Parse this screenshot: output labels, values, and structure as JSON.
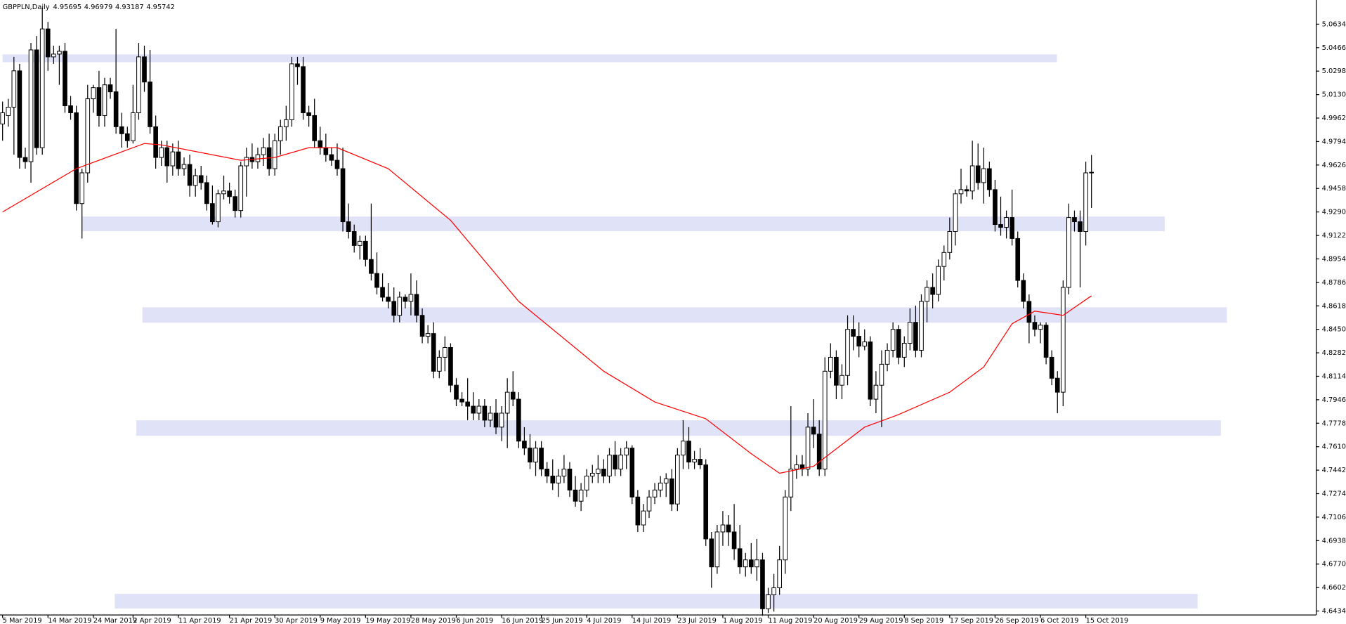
{
  "chart_data": {
    "type": "candlestick",
    "title": "GBPPLN,Daily",
    "title_values": [
      4.95695,
      4.96979,
      4.93187,
      4.95742
    ],
    "categories": [
      "5 Mar 2019",
      null,
      null,
      null,
      null,
      null,
      null,
      null,
      "14 Mar 2019",
      null,
      null,
      null,
      null,
      null,
      null,
      null,
      "24 Mar 2019",
      null,
      null,
      null,
      null,
      null,
      null,
      "2 Apr 2019",
      null,
      null,
      null,
      null,
      null,
      null,
      null,
      "11 Apr 2019",
      null,
      null,
      null,
      null,
      null,
      null,
      null,
      null,
      "21 Apr 2019",
      null,
      null,
      null,
      null,
      null,
      null,
      null,
      "30 Apr 2019",
      null,
      null,
      null,
      null,
      null,
      null,
      null,
      "9 May 2019",
      null,
      null,
      null,
      null,
      null,
      null,
      null,
      "19 May 2019",
      null,
      null,
      null,
      null,
      null,
      null,
      null,
      "28 May 2019",
      null,
      null,
      null,
      null,
      null,
      null,
      null,
      "6 Jun 2019",
      null,
      null,
      null,
      null,
      null,
      null,
      null,
      "16 Jun 2019",
      null,
      null,
      null,
      null,
      null,
      null,
      "25 Jun 2019",
      null,
      null,
      null,
      null,
      null,
      null,
      null,
      "4 Jul 2019",
      null,
      null,
      null,
      null,
      null,
      null,
      null,
      "14 Jul 2019",
      null,
      null,
      null,
      null,
      null,
      null,
      null,
      "23 Jul 2019",
      null,
      null,
      null,
      null,
      null,
      null,
      null,
      "1 Aug 2019",
      null,
      null,
      null,
      null,
      null,
      null,
      null,
      "11 Aug 2019",
      null,
      null,
      null,
      null,
      null,
      null,
      null,
      "20 Aug 2019",
      null,
      null,
      null,
      null,
      null,
      null,
      null,
      "29 Aug 2019",
      null,
      null,
      null,
      null,
      null,
      null,
      null,
      "8 Sep 2019",
      null,
      null,
      null,
      null,
      null,
      null,
      null,
      "17 Sep 2019",
      null,
      null,
      null,
      null,
      null,
      null,
      null,
      "26 Sep 2019",
      null,
      null,
      null,
      null,
      null,
      null,
      null,
      "6 Oct 2019",
      null,
      null,
      null,
      null,
      null,
      null,
      null,
      "15 Oct 2019",
      null
    ],
    "open": [
      4.992,
      4.998,
      5.004,
      5.03,
      4.968,
      4.965,
      5.045,
      4.975,
      5.06,
      5.04,
      5.042,
      5.044,
      5.005,
      5.0,
      4.935,
      4.957,
      5.01,
      5.018,
      4.998,
      5.02,
      5.015,
      4.99,
      4.985,
      4.98,
      5.0,
      5.04,
      5.022,
      4.99,
      4.968,
      4.975,
      4.962,
      4.972,
      4.96,
      4.963,
      4.948,
      4.955,
      4.95,
      4.935,
      4.922,
      4.942,
      4.944,
      4.94,
      4.93,
      4.962,
      4.968,
      4.965,
      4.97,
      4.975,
      4.96,
      4.98,
      4.99,
      4.995,
      5.035,
      5.033,
      5.0,
      4.998,
      4.98,
      4.975,
      4.97,
      4.966,
      4.96,
      4.922,
      4.915,
      4.905,
      4.908,
      4.895,
      4.885,
      4.875,
      4.868,
      4.865,
      4.855,
      4.868,
      4.865,
      4.87,
      4.855,
      4.84,
      4.842,
      4.815,
      4.825,
      4.832,
      4.805,
      4.795,
      4.793,
      4.79,
      4.785,
      4.79,
      4.78,
      4.785,
      4.775,
      4.785,
      4.8,
      4.795,
      4.765,
      4.76,
      4.75,
      4.76,
      4.745,
      4.74,
      4.735,
      4.74,
      4.745,
      4.73,
      4.722,
      4.73,
      4.74,
      4.742,
      4.745,
      4.74,
      4.755,
      4.745,
      4.755,
      4.76,
      4.725,
      4.705,
      4.715,
      4.725,
      4.73,
      4.735,
      4.738,
      4.72,
      4.755,
      4.765,
      4.75,
      4.752,
      4.748,
      4.695,
      4.675,
      4.7,
      4.705,
      4.7,
      4.688,
      4.675,
      4.68,
      4.675,
      4.68,
      4.645,
      4.655,
      4.66,
      4.68,
      4.725,
      4.745,
      4.748,
      4.745,
      4.775,
      4.77,
      4.745,
      4.815,
      4.825,
      4.805,
      4.812,
      4.845,
      4.84,
      4.833,
      4.836,
      4.795,
      4.805,
      4.82,
      4.83,
      4.845,
      4.825,
      4.835,
      4.85,
      4.83,
      4.865,
      4.875,
      4.87,
      4.89,
      4.9,
      4.915,
      4.942,
      4.945,
      4.944,
      4.962,
      4.95,
      4.96,
      4.945,
      4.92,
      4.918,
      4.925,
      4.91,
      4.88,
      4.865,
      4.85,
      4.845,
      4.848,
      4.825,
      4.81,
      4.8,
      4.875,
      4.925,
      4.922,
      4.915,
      4.95695
    ],
    "high": [
      5.008,
      5.01,
      5.04,
      5.035,
      4.975,
      5.05,
      5.055,
      5.075,
      5.065,
      5.048,
      5.048,
      5.05,
      5.012,
      5.005,
      4.96,
      5.02,
      5.02,
      5.03,
      5.025,
      5.025,
      5.06,
      5.0,
      4.99,
      5.02,
      5.05,
      5.048,
      5.045,
      4.998,
      4.98,
      4.98,
      4.978,
      4.98,
      4.968,
      4.97,
      4.96,
      4.962,
      4.955,
      4.948,
      4.945,
      4.955,
      4.95,
      4.945,
      4.965,
      4.975,
      4.978,
      4.975,
      4.982,
      4.985,
      4.985,
      4.995,
      5.005,
      5.04,
      5.04,
      5.04,
      5.005,
      5.01,
      4.99,
      4.985,
      4.975,
      4.978,
      4.975,
      4.935,
      4.92,
      4.912,
      4.912,
      4.935,
      4.9,
      4.885,
      4.878,
      4.875,
      4.872,
      4.87,
      4.885,
      4.88,
      4.86,
      4.848,
      4.85,
      4.83,
      4.84,
      4.835,
      4.81,
      4.8,
      4.81,
      4.8,
      4.795,
      4.795,
      4.79,
      4.795,
      4.79,
      4.81,
      4.815,
      4.8,
      4.775,
      4.77,
      4.765,
      4.765,
      4.75,
      4.752,
      4.745,
      4.755,
      4.75,
      4.74,
      4.735,
      4.745,
      4.748,
      4.755,
      4.752,
      4.76,
      4.765,
      4.76,
      4.765,
      4.762,
      4.73,
      4.72,
      4.73,
      4.735,
      4.74,
      4.742,
      4.745,
      4.76,
      4.78,
      4.775,
      4.758,
      4.76,
      4.752,
      4.7,
      4.705,
      4.715,
      4.712,
      4.72,
      4.705,
      4.685,
      4.692,
      4.695,
      4.685,
      4.66,
      4.67,
      4.69,
      4.73,
      4.79,
      4.755,
      4.755,
      4.785,
      4.795,
      4.78,
      4.825,
      4.835,
      4.83,
      4.82,
      4.855,
      4.855,
      4.85,
      4.845,
      4.84,
      4.815,
      4.83,
      4.835,
      4.85,
      4.848,
      4.84,
      4.86,
      4.862,
      4.87,
      4.88,
      4.885,
      4.895,
      4.905,
      4.925,
      4.945,
      4.96,
      4.948,
      4.98,
      4.978,
      4.975,
      4.965,
      4.952,
      4.94,
      4.93,
      4.945,
      4.915,
      4.885,
      4.87,
      4.855,
      4.85,
      4.85,
      4.83,
      4.815,
      4.88,
      4.935,
      4.93,
      4.93,
      4.965,
      4.96979
    ],
    "low": [
      4.98,
      4.99,
      4.97,
      4.96,
      4.96,
      4.95,
      4.97,
      4.97,
      5.03,
      5.035,
      5.02,
      5.0,
      4.995,
      4.93,
      4.91,
      4.95,
      5.0,
      4.99,
      4.99,
      5.01,
      4.985,
      4.975,
      4.975,
      4.978,
      4.995,
      5.015,
      4.985,
      4.96,
      4.962,
      4.95,
      4.955,
      4.955,
      4.955,
      4.94,
      4.94,
      4.945,
      4.93,
      4.92,
      4.918,
      4.938,
      4.935,
      4.925,
      4.925,
      4.94,
      4.96,
      4.96,
      4.962,
      4.955,
      4.955,
      4.97,
      4.98,
      4.99,
      5.02,
      4.995,
      4.99,
      4.975,
      4.97,
      4.965,
      4.962,
      4.955,
      4.915,
      4.91,
      4.9,
      4.895,
      4.89,
      4.88,
      4.87,
      4.865,
      4.86,
      4.85,
      4.85,
      4.86,
      4.855,
      4.85,
      4.835,
      4.835,
      4.81,
      4.81,
      4.815,
      4.8,
      4.79,
      4.79,
      4.78,
      4.78,
      4.78,
      4.775,
      4.775,
      4.77,
      4.765,
      4.76,
      4.79,
      4.76,
      4.755,
      4.745,
      4.74,
      4.74,
      4.735,
      4.73,
      4.725,
      4.735,
      4.725,
      4.718,
      4.715,
      4.725,
      4.735,
      4.735,
      4.735,
      4.735,
      4.74,
      4.74,
      4.745,
      4.72,
      4.7,
      4.7,
      4.71,
      4.72,
      4.725,
      4.725,
      4.715,
      4.715,
      4.745,
      4.745,
      4.745,
      4.745,
      4.69,
      4.66,
      4.67,
      4.69,
      4.69,
      4.68,
      4.67,
      4.668,
      4.67,
      4.665,
      4.64,
      4.642,
      4.643,
      4.655,
      4.67,
      4.715,
      4.738,
      4.74,
      4.74,
      4.76,
      4.74,
      4.74,
      4.81,
      4.795,
      4.795,
      4.805,
      4.83,
      4.825,
      4.83,
      4.79,
      4.785,
      4.775,
      4.815,
      4.825,
      4.82,
      4.818,
      4.83,
      4.825,
      4.825,
      4.85,
      4.86,
      4.865,
      4.88,
      4.895,
      4.905,
      4.935,
      4.94,
      4.938,
      4.945,
      4.935,
      4.94,
      4.915,
      4.912,
      4.91,
      4.905,
      4.875,
      4.86,
      4.835,
      4.84,
      4.835,
      4.82,
      4.805,
      4.785,
      4.79,
      4.87,
      4.915,
      4.875,
      4.905,
      4.93187
    ],
    "close": [
      5.0,
      5.004,
      5.03,
      4.968,
      4.965,
      5.045,
      4.975,
      5.06,
      5.04,
      5.042,
      5.044,
      5.005,
      5.0,
      4.935,
      4.957,
      5.01,
      5.018,
      4.998,
      5.02,
      5.015,
      4.99,
      4.985,
      4.98,
      5.0,
      5.04,
      5.022,
      4.99,
      4.968,
      4.975,
      4.962,
      4.972,
      4.96,
      4.963,
      4.948,
      4.955,
      4.95,
      4.935,
      4.922,
      4.942,
      4.944,
      4.94,
      4.93,
      4.962,
      4.968,
      4.965,
      4.97,
      4.975,
      4.96,
      4.98,
      4.99,
      4.995,
      5.035,
      5.033,
      5.0,
      4.998,
      4.98,
      4.975,
      4.97,
      4.966,
      4.96,
      4.922,
      4.915,
      4.905,
      4.908,
      4.895,
      4.885,
      4.875,
      4.868,
      4.865,
      4.855,
      4.868,
      4.865,
      4.87,
      4.855,
      4.84,
      4.842,
      4.815,
      4.825,
      4.832,
      4.805,
      4.795,
      4.793,
      4.79,
      4.785,
      4.79,
      4.78,
      4.785,
      4.775,
      4.785,
      4.8,
      4.795,
      4.765,
      4.76,
      4.75,
      4.76,
      4.745,
      4.74,
      4.735,
      4.74,
      4.745,
      4.73,
      4.722,
      4.73,
      4.74,
      4.742,
      4.745,
      4.74,
      4.755,
      4.745,
      4.755,
      4.76,
      4.725,
      4.705,
      4.715,
      4.725,
      4.73,
      4.735,
      4.738,
      4.72,
      4.755,
      4.765,
      4.75,
      4.752,
      4.748,
      4.695,
      4.675,
      4.7,
      4.705,
      4.7,
      4.688,
      4.675,
      4.68,
      4.675,
      4.68,
      4.645,
      4.655,
      4.66,
      4.68,
      4.725,
      4.745,
      4.748,
      4.745,
      4.775,
      4.77,
      4.745,
      4.815,
      4.825,
      4.805,
      4.812,
      4.845,
      4.84,
      4.833,
      4.836,
      4.795,
      4.805,
      4.82,
      4.83,
      4.845,
      4.825,
      4.835,
      4.85,
      4.83,
      4.865,
      4.875,
      4.87,
      4.89,
      4.9,
      4.915,
      4.942,
      4.945,
      4.944,
      4.962,
      4.95,
      4.96,
      4.945,
      4.92,
      4.918,
      4.925,
      4.91,
      4.88,
      4.865,
      4.85,
      4.845,
      4.848,
      4.825,
      4.81,
      4.8,
      4.875,
      4.925,
      4.922,
      4.915,
      4.957,
      4.95742
    ],
    "bull_color": "#ffffff",
    "bear_color": "#000000",
    "ma": {
      "color": "#ff0000",
      "x": [
        0,
        13,
        25,
        28,
        42,
        48,
        54,
        59,
        68,
        79,
        91,
        106,
        115,
        124,
        132,
        137,
        143,
        152,
        158,
        167,
        173,
        178,
        182,
        187,
        192
      ],
      "values": [
        4.929,
        4.96,
        4.978,
        4.977,
        4.966,
        4.968,
        4.975,
        4.975,
        4.96,
        4.923,
        4.865,
        4.815,
        4.793,
        4.781,
        4.756,
        4.742,
        4.747,
        4.775,
        4.784,
        4.8,
        4.818,
        4.849,
        4.858,
        4.855,
        4.869
      ]
    },
    "zones": {
      "color": "#e0e3f8",
      "ranges": [
        [
          5.0362,
          5.0418
        ],
        [
          4.9152,
          4.9257
        ],
        [
          4.8497,
          4.8608
        ],
        [
          4.7688,
          4.7799
        ],
        [
          4.6452,
          4.6557
        ]
      ]
    },
    "ylim": [
      4.6409,
      5.0807
    ],
    "yticks": [
      {
        "value": 5.0634,
        "label": "5.06340"
      },
      {
        "value": 5.0466,
        "label": "5.04660"
      },
      {
        "value": 5.0298,
        "label": "5.02980"
      },
      {
        "value": 5.013,
        "label": "5.01300"
      },
      {
        "value": 4.9962,
        "label": "4.99620"
      },
      {
        "value": 4.9794,
        "label": "4.97940"
      },
      {
        "value": 4.9626,
        "label": "4.96260"
      },
      {
        "value": 4.9458,
        "label": "4.94580"
      },
      {
        "value": 4.929,
        "label": "4.92900"
      },
      {
        "value": 4.9122,
        "label": "4.91220"
      },
      {
        "value": 4.8954,
        "label": "4.89540"
      },
      {
        "value": 4.8786,
        "label": "4.87860"
      },
      {
        "value": 4.8618,
        "label": "4.86180"
      },
      {
        "value": 4.845,
        "label": "4.84500"
      },
      {
        "value": 4.8282,
        "label": "4.82820"
      },
      {
        "value": 4.8114,
        "label": "4.81140"
      },
      {
        "value": 4.7946,
        "label": "4.79460"
      },
      {
        "value": 4.7778,
        "label": "4.77780"
      },
      {
        "value": 4.761,
        "label": "4.76100"
      },
      {
        "value": 4.7442,
        "label": "4.74420"
      },
      {
        "value": 4.7274,
        "label": "4.72740"
      },
      {
        "value": 4.7106,
        "label": "4.71060"
      },
      {
        "value": 4.6938,
        "label": "4.69380"
      },
      {
        "value": 4.677,
        "label": "4.67700"
      },
      {
        "value": 4.6602,
        "label": "4.66020"
      },
      {
        "value": 4.6434,
        "label": "4.64340"
      }
    ]
  }
}
